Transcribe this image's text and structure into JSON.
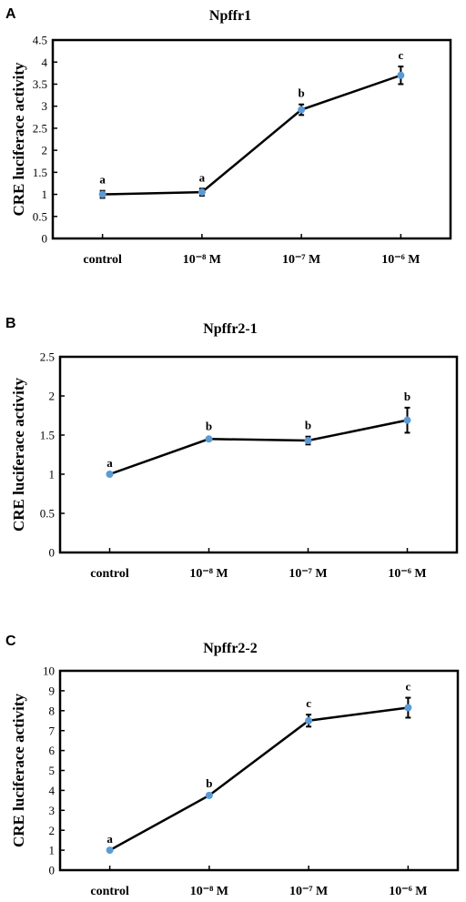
{
  "chart_data": [
    {
      "panel": "A",
      "type": "line",
      "title": "Npffr1",
      "xlabel": "",
      "ylabel": "CRE luciferace activity",
      "categories": [
        "control",
        "10⁻⁸ M",
        "10⁻⁷ M",
        "10⁻⁶ M"
      ],
      "values": [
        1.0,
        1.05,
        2.92,
        3.7
      ],
      "errors": [
        0.08,
        0.08,
        0.12,
        0.2
      ],
      "significance": [
        "a",
        "a",
        "b",
        "c"
      ],
      "ylim": [
        0,
        4.5
      ],
      "yticks": [
        "0",
        "0.5",
        "1",
        "1.5",
        "2",
        "2.5",
        "3",
        "3.5",
        "4",
        "4.5"
      ],
      "grid": false,
      "colors": {
        "marker": "#5b9bd5",
        "line": "#000000"
      }
    },
    {
      "panel": "B",
      "type": "line",
      "title": "Npffr2-1",
      "xlabel": "",
      "ylabel": "CRE luciferace activity",
      "categories": [
        "control",
        "10⁻⁸ M",
        "10⁻⁷ M",
        "10⁻⁶ M"
      ],
      "values": [
        1.0,
        1.45,
        1.43,
        1.69
      ],
      "errors": [
        0.0,
        0.02,
        0.05,
        0.16
      ],
      "significance": [
        "a",
        "b",
        "b",
        "b"
      ],
      "ylim": [
        0,
        2.5
      ],
      "yticks": [
        "0",
        "0.5",
        "1",
        "1.5",
        "2",
        "2.5"
      ],
      "grid": false,
      "colors": {
        "marker": "#5b9bd5",
        "line": "#000000"
      }
    },
    {
      "panel": "C",
      "type": "line",
      "title": "Npffr2-2",
      "xlabel": "",
      "ylabel": "CRE luciferace activity",
      "categories": [
        "control",
        "10⁻⁸ M",
        "10⁻⁷ M",
        "10⁻⁶ M"
      ],
      "values": [
        1.0,
        3.75,
        7.5,
        8.15
      ],
      "errors": [
        0.0,
        0.05,
        0.3,
        0.5
      ],
      "significance": [
        "a",
        "b",
        "c",
        "c"
      ],
      "ylim": [
        0,
        10
      ],
      "yticks": [
        "0",
        "1",
        "2",
        "3",
        "4",
        "5",
        "6",
        "7",
        "8",
        "9",
        "10"
      ],
      "grid": false,
      "colors": {
        "marker": "#5b9bd5",
        "line": "#000000"
      }
    }
  ]
}
